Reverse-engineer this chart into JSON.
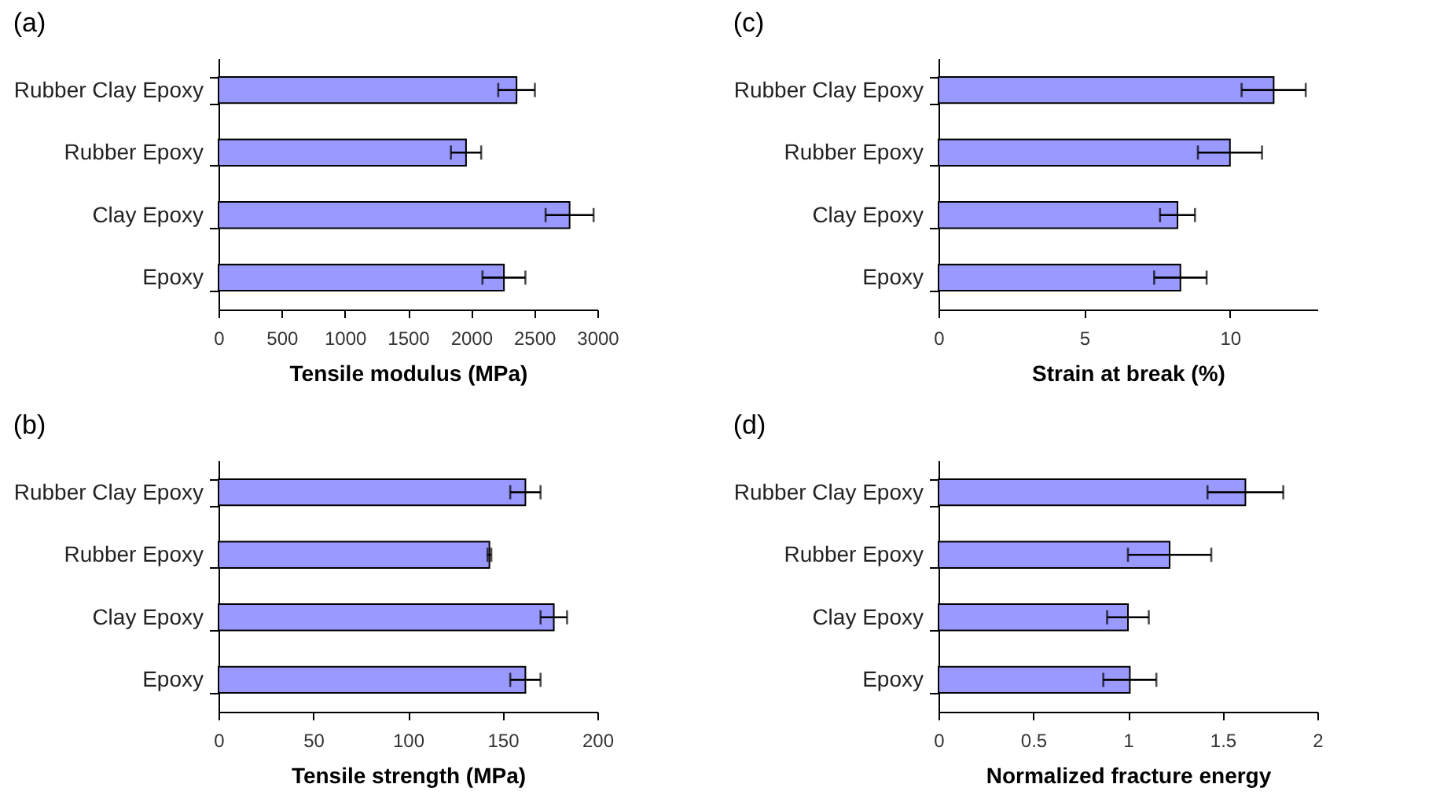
{
  "chart_data": [
    {
      "type": "bar",
      "title": "(a)",
      "orientation": "horizontal",
      "categories": [
        "Rubber Clay Epoxy",
        "Rubber Epoxy",
        "Clay Epoxy",
        "Epoxy"
      ],
      "values": [
        2360,
        1960,
        2780,
        2260
      ],
      "errors": [
        145,
        120,
        190,
        170
      ],
      "color": "#9999ff",
      "xlabel": "Tensile modulus (MPa)",
      "xlim": [
        0,
        3000
      ],
      "xticks": [
        0,
        500,
        1000,
        1500,
        2000,
        2500,
        3000
      ]
    },
    {
      "type": "bar",
      "title": "(c)",
      "orientation": "horizontal",
      "categories": [
        "Rubber Clay Epoxy",
        "Rubber Epoxy",
        "Clay Epoxy",
        "Epoxy"
      ],
      "values": [
        11.5,
        10.0,
        8.2,
        8.3
      ],
      "errors": [
        1.1,
        1.1,
        0.6,
        0.9
      ],
      "color": "#9999ff",
      "xlabel": "Strain at break (%)",
      "xlim": [
        0,
        13
      ],
      "xticks": [
        0,
        5,
        10
      ]
    },
    {
      "type": "bar",
      "title": "(b)",
      "orientation": "horizontal",
      "categories": [
        "Rubber Clay Epoxy",
        "Rubber Epoxy",
        "Clay Epoxy",
        "Epoxy"
      ],
      "values": [
        162,
        143,
        177,
        162
      ],
      "errors": [
        8,
        1,
        7,
        8
      ],
      "color": "#9999ff",
      "xlabel": "Tensile strength (MPa)",
      "xlim": [
        0,
        200
      ],
      "xticks": [
        0,
        50,
        100,
        150,
        200
      ]
    },
    {
      "type": "bar",
      "title": "(d)",
      "orientation": "horizontal",
      "categories": [
        "Rubber Clay Epoxy",
        "Rubber Epoxy",
        "Clay Epoxy",
        "Epoxy"
      ],
      "values": [
        1.62,
        1.22,
        1.0,
        1.01
      ],
      "errors": [
        0.2,
        0.22,
        0.11,
        0.14
      ],
      "color": "#9999ff",
      "xlabel": "Normalized fracture energy",
      "xlim": [
        0,
        2
      ],
      "xticks": [
        0,
        0.5,
        1,
        1.5,
        2
      ]
    }
  ]
}
